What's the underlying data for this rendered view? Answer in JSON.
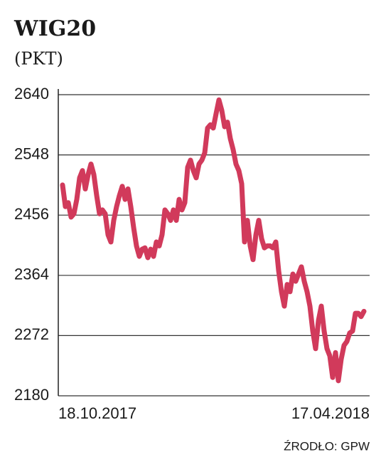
{
  "chart_data": {
    "type": "line",
    "title": "WIG20",
    "subtitle": "(PKT)",
    "source": "ŹRODŁO: GPW",
    "categories": [
      "18.10.2017",
      null,
      null,
      null,
      null,
      null,
      null,
      null,
      null,
      null,
      null,
      null,
      null,
      null,
      null,
      null,
      null,
      null,
      null,
      null,
      null,
      null,
      null,
      null,
      null,
      null,
      null,
      null,
      null,
      null,
      null,
      null,
      null,
      null,
      null,
      null,
      null,
      null,
      null,
      null,
      null,
      null,
      null,
      null,
      null,
      null,
      null,
      null,
      null,
      null,
      null,
      null,
      null,
      null,
      null,
      null,
      null,
      null,
      null,
      null,
      null,
      null,
      null,
      null,
      null,
      null,
      null,
      null,
      null,
      null,
      null,
      null,
      null,
      null,
      null,
      null,
      null,
      null,
      null,
      null,
      null,
      null,
      null,
      null,
      null,
      null,
      null,
      null,
      null,
      null,
      null,
      null,
      null,
      null,
      null,
      null,
      null,
      null,
      null,
      null,
      null,
      null,
      null,
      null,
      null,
      null,
      "17.04.2018"
    ],
    "values": [
      2502,
      2469,
      2475,
      2453,
      2458,
      2480,
      2513,
      2524,
      2496,
      2518,
      2534,
      2518,
      2486,
      2458,
      2464,
      2458,
      2426,
      2415,
      2448,
      2469,
      2486,
      2500,
      2480,
      2496,
      2469,
      2437,
      2409,
      2393,
      2404,
      2406,
      2391,
      2404,
      2393,
      2415,
      2409,
      2426,
      2464,
      2458,
      2448,
      2464,
      2448,
      2480,
      2464,
      2475,
      2529,
      2540,
      2524,
      2513,
      2534,
      2540,
      2551,
      2589,
      2594,
      2589,
      2611,
      2632,
      2616,
      2591,
      2598,
      2573,
      2556,
      2534,
      2524,
      2504,
      2415,
      2448,
      2409,
      2388,
      2426,
      2448,
      2420,
      2406,
      2409,
      2409,
      2406,
      2415,
      2371,
      2339,
      2317,
      2350,
      2339,
      2366,
      2355,
      2366,
      2377,
      2355,
      2339,
      2317,
      2279,
      2252,
      2295,
      2317,
      2279,
      2252,
      2241,
      2208,
      2246,
      2203,
      2236,
      2257,
      2263,
      2276,
      2279,
      2306,
      2306,
      2301,
      2309
    ],
    "color": "#d13a5b",
    "ylim": [
      2180,
      2640
    ],
    "yticks": [
      2180,
      2272,
      2364,
      2456,
      2548,
      2640
    ],
    "grid": true
  }
}
